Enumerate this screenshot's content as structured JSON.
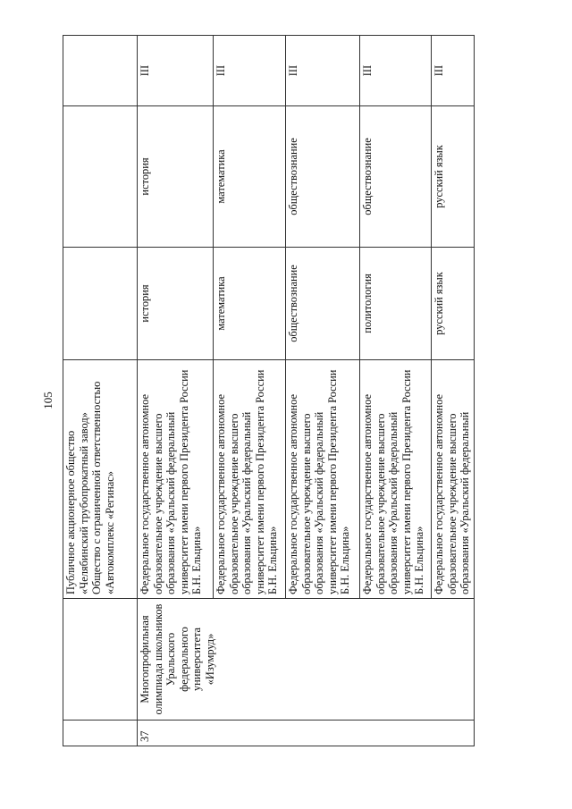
{
  "page_number": "105",
  "table": {
    "continuation_row": {
      "organizer": "Публичное акционерное общество «Челябинский трубопрокатный завод» Общество с ограниченной ответственностью «Автокомплекс «Регинас»"
    },
    "entry": {
      "number": "37",
      "olympiad_name": "Многопрофильная олимпиада школьников Уральского федерального университета «Изумруд»",
      "rows": [
        {
          "organizer": "Федеральное государственное автономное образовательное учреждение высшего образования «Уральский федеральный университет имени первого Президента России Б.Н. Ельцина»",
          "profile": "история",
          "subject": "история",
          "level": "III"
        },
        {
          "organizer": "Федеральное государственное автономное образовательное учреждение высшего образования «Уральский федеральный университет имени первого Президента России Б.Н. Ельцина»",
          "profile": "математика",
          "subject": "математика",
          "level": "III"
        },
        {
          "organizer": "Федеральное государственное автономное образовательное учреждение высшего образования «Уральский федеральный университет имени первого Президента России Б.Н. Ельцина»",
          "profile": "обществознание",
          "subject": "обществознание",
          "level": "III"
        },
        {
          "organizer": "Федеральное государственное автономное образовательное учреждение высшего образования «Уральский федеральный университет имени первого Президента России Б.Н. Ельцина»",
          "profile": "политология",
          "subject": "обществознание",
          "level": "III"
        },
        {
          "organizer": "Федеральное государственное автономное образовательное учреждение высшего образования «Уральский федеральный",
          "profile": "русский язык",
          "subject": "русский язык",
          "level": "III"
        }
      ]
    }
  }
}
